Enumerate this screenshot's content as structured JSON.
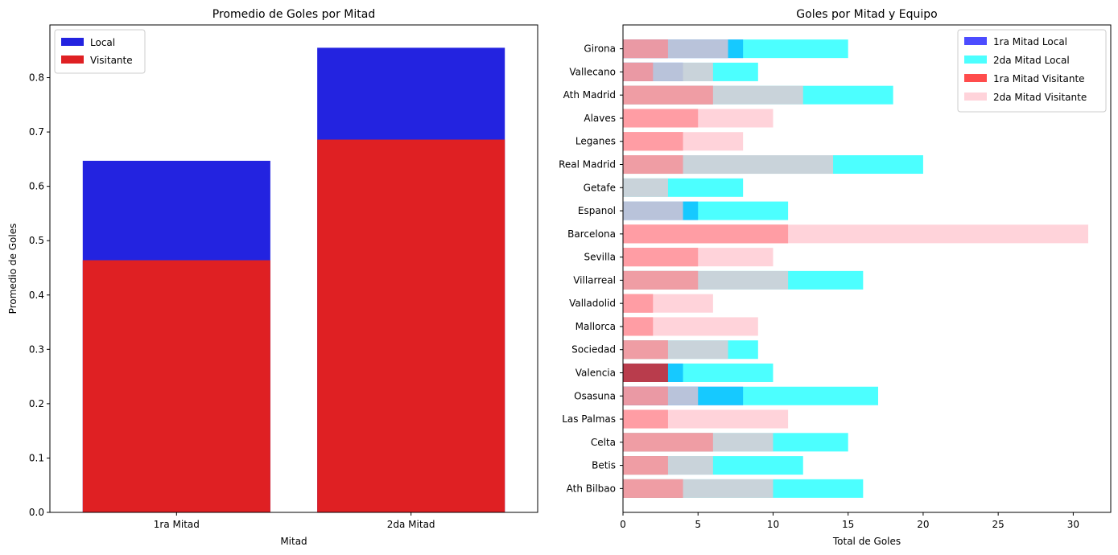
{
  "chart_data": [
    {
      "type": "bar",
      "title": "Promedio de Goles por Mitad",
      "xlabel": "Mitad",
      "ylabel": "Promedio de Goles",
      "categories": [
        "1ra Mitad",
        "2da Mitad"
      ],
      "series": [
        {
          "name": "Local",
          "color": "#2323e0",
          "values": [
            0.647,
            0.855
          ]
        },
        {
          "name": "Visitante",
          "color": "#df2023",
          "values": [
            0.464,
            0.686
          ]
        }
      ],
      "ylim": [
        0,
        0.897
      ],
      "yticks": [
        0.0,
        0.1,
        0.2,
        0.3,
        0.4,
        0.5,
        0.6,
        0.7,
        0.8
      ],
      "legend": "top-left",
      "grid": false
    },
    {
      "type": "bar",
      "orientation": "horizontal",
      "title": "Goles por Mitad y Equipo",
      "xlabel": "Total de Goles",
      "ylabel": "",
      "categories": [
        "Girona",
        "Vallecano",
        "Ath Madrid",
        "Alaves",
        "Leganes",
        "Real Madrid",
        "Getafe",
        "Espanol",
        "Barcelona",
        "Sevilla",
        "Villarreal",
        "Valladolid",
        "Mallorca",
        "Sociedad",
        "Valencia",
        "Osasuna",
        "Las Palmas",
        "Celta",
        "Betis",
        "Ath Bilbao"
      ],
      "series": [
        {
          "name": "1ra Mitad Local",
          "color": "#0000ff",
          "alpha": 0.7,
          "values": [
            8,
            4,
            0,
            0,
            0,
            0,
            0,
            5,
            0,
            0,
            0,
            0,
            0,
            0,
            4,
            8,
            0,
            0,
            0,
            0
          ]
        },
        {
          "name": "2da Mitad Local",
          "color": "#00ffff",
          "alpha": 0.7,
          "values": [
            15,
            9,
            18,
            0,
            0,
            20,
            8,
            11,
            0,
            0,
            16,
            0,
            0,
            9,
            10,
            17,
            0,
            15,
            12,
            16
          ]
        },
        {
          "name": "1ra Mitad Visitante",
          "color": "#ff0000",
          "alpha": 0.7,
          "values": [
            3,
            2,
            6,
            5,
            4,
            4,
            0,
            0,
            11,
            5,
            5,
            2,
            2,
            3,
            3,
            3,
            3,
            6,
            3,
            4
          ]
        },
        {
          "name": "2da Mitad Visitante",
          "color": "#ffc0cb",
          "alpha": 0.7,
          "values": [
            7,
            6,
            12,
            10,
            8,
            14,
            3,
            4,
            31,
            10,
            11,
            6,
            9,
            7,
            0,
            5,
            11,
            10,
            6,
            10
          ]
        }
      ],
      "xlim": [
        0,
        32.5
      ],
      "xticks": [
        0,
        5,
        10,
        15,
        20,
        25,
        30
      ],
      "legend": "top-right",
      "grid": false
    }
  ]
}
